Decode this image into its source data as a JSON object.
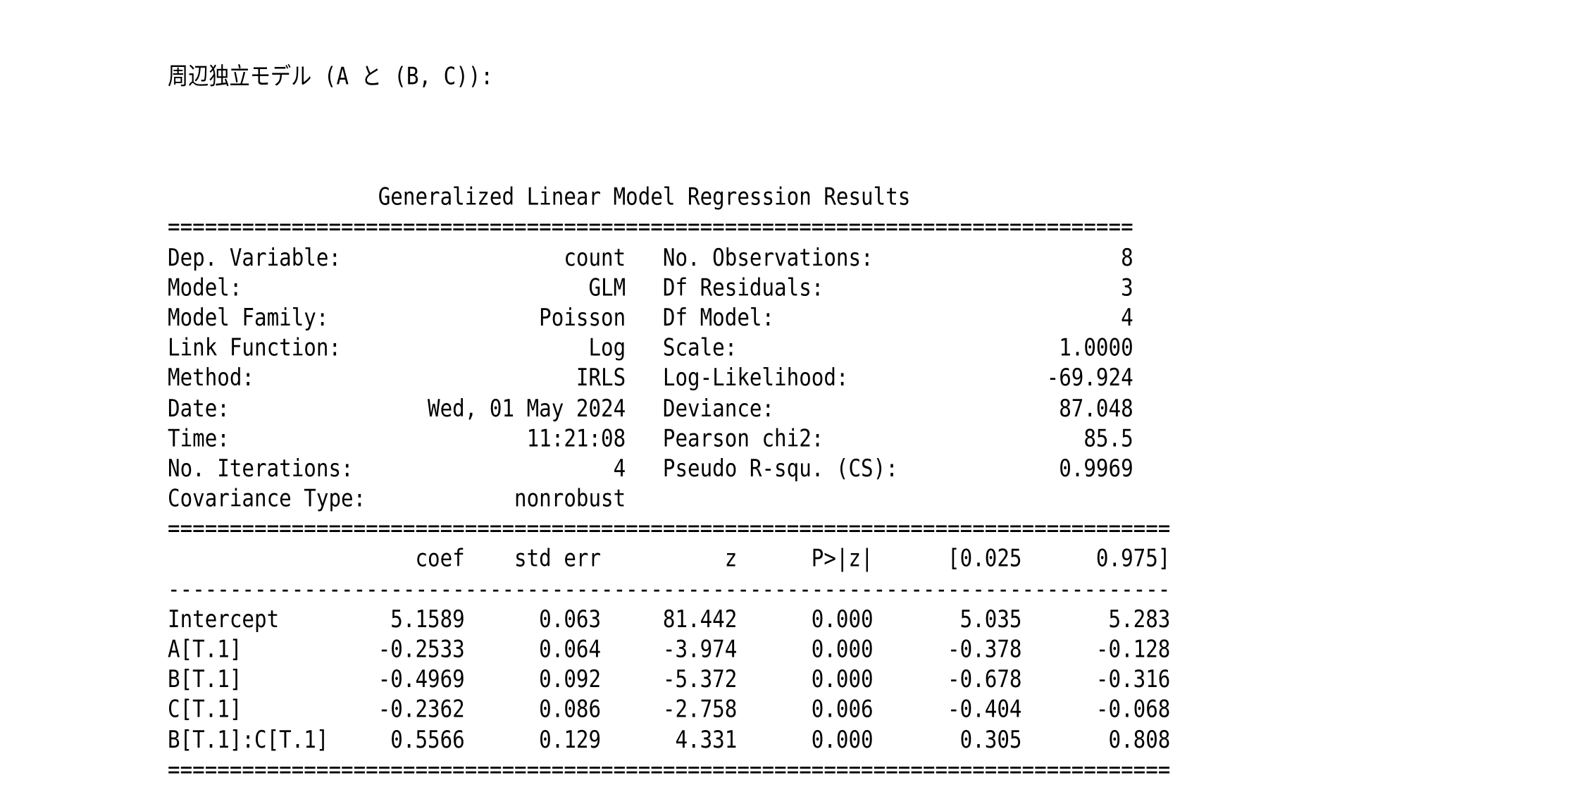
{
  "page": {
    "title_jp": "周辺独立モデル (A と (B, C)):"
  },
  "summary": {
    "title": "Generalized Linear Model Regression Results",
    "info_left": [
      {
        "label": "Dep. Variable:",
        "value": "count"
      },
      {
        "label": "Model:",
        "value": "GLM"
      },
      {
        "label": "Model Family:",
        "value": "Poisson"
      },
      {
        "label": "Link Function:",
        "value": "Log"
      },
      {
        "label": "Method:",
        "value": "IRLS"
      },
      {
        "label": "Date:",
        "value": "Wed, 01 May 2024"
      },
      {
        "label": "Time:",
        "value": "11:21:08"
      },
      {
        "label": "No. Iterations:",
        "value": "4"
      },
      {
        "label": "Covariance Type:",
        "value": "nonrobust"
      }
    ],
    "info_right": [
      {
        "label": "No. Observations:",
        "value": "8"
      },
      {
        "label": "Df Residuals:",
        "value": "3"
      },
      {
        "label": "Df Model:",
        "value": "4"
      },
      {
        "label": "Scale:",
        "value": "1.0000"
      },
      {
        "label": "Log-Likelihood:",
        "value": "-69.924"
      },
      {
        "label": "Deviance:",
        "value": "87.048"
      },
      {
        "label": "Pearson chi2:",
        "value": "85.5"
      },
      {
        "label": "Pseudo R-squ. (CS):",
        "value": "0.9969"
      }
    ],
    "coef_table": {
      "headers": [
        "",
        "coef",
        "std err",
        "z",
        "P>|z|",
        "[0.025",
        "0.975]"
      ],
      "rows": [
        [
          "Intercept",
          "5.1589",
          "0.063",
          "81.442",
          "0.000",
          "5.035",
          "5.283"
        ],
        [
          "A[T.1]",
          "-0.2533",
          "0.064",
          "-3.974",
          "0.000",
          "-0.378",
          "-0.128"
        ],
        [
          "B[T.1]",
          "-0.4969",
          "0.092",
          "-5.372",
          "0.000",
          "-0.678",
          "-0.316"
        ],
        [
          "C[T.1]",
          "-0.2362",
          "0.086",
          "-2.758",
          "0.006",
          "-0.404",
          "-0.068"
        ],
        [
          "B[T.1]:C[T.1]",
          "0.5566",
          "0.129",
          "4.331",
          "0.000",
          "0.305",
          "0.808"
        ]
      ]
    },
    "text_colors": {
      "foreground": "#000000",
      "background": "#ffffff"
    }
  }
}
